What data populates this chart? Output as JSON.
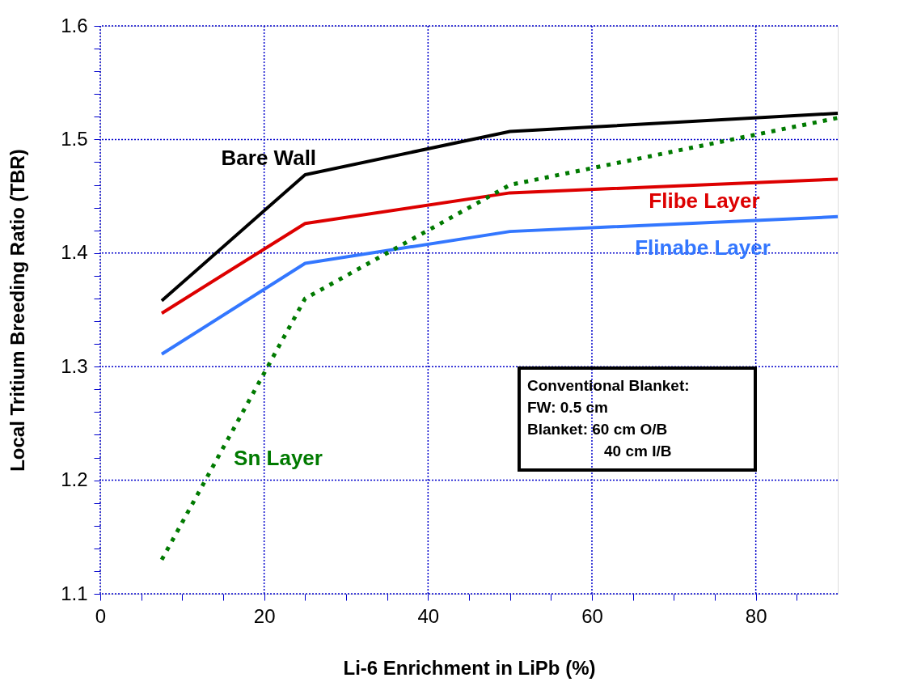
{
  "chart_data": {
    "type": "line",
    "xlabel": "Li-6 Enrichment in LiPb (%)",
    "ylabel": "Local Tritium Breeding Ratio (TBR)",
    "x": [
      7.5,
      25,
      50,
      90
    ],
    "series": [
      {
        "name": "Bare Wall",
        "color": "#000000",
        "values": [
          1.358,
          1.469,
          1.507,
          1.523
        ]
      },
      {
        "name": "Flibe Layer",
        "color": "#dd0000",
        "values": [
          1.347,
          1.426,
          1.453,
          1.465
        ]
      },
      {
        "name": "Flinabe Layer",
        "color": "#3377ff",
        "values": [
          1.311,
          1.391,
          1.419,
          1.432
        ]
      },
      {
        "name": "Sn Layer",
        "color": "#007a00",
        "values": [
          1.13,
          1.36,
          1.46,
          1.519
        ],
        "line_style": "dotted"
      }
    ],
    "xlim": [
      0,
      90
    ],
    "xticks": [
      0,
      {
        "value": 5,
        "label": null
      },
      {
        "value": 10,
        "label": null
      },
      {
        "value": 15,
        "label": null
      },
      20,
      {
        "value": 25,
        "label": null
      },
      {
        "value": 30,
        "label": null
      },
      {
        "value": 35,
        "label": null
      },
      40,
      {
        "value": 45,
        "label": null
      },
      {
        "value": 50,
        "label": null
      },
      {
        "value": 55,
        "label": null
      },
      60,
      {
        "value": 65,
        "label": null
      },
      {
        "value": 70,
        "label": null
      },
      {
        "value": 75,
        "label": null
      },
      80,
      {
        "value": 85,
        "label": null
      }
    ],
    "ylim": [
      1.1,
      1.6
    ],
    "yticks": [
      1.1,
      {
        "value": 1.12,
        "label": null
      },
      {
        "value": 1.14,
        "label": null
      },
      {
        "value": 1.16,
        "label": null
      },
      {
        "value": 1.18,
        "label": null
      },
      1.2,
      {
        "value": 1.22,
        "label": null
      },
      {
        "value": 1.24,
        "label": null
      },
      {
        "value": 1.26,
        "label": null
      },
      {
        "value": 1.28,
        "label": null
      },
      1.3,
      {
        "value": 1.32,
        "label": null
      },
      {
        "value": 1.34,
        "label": null
      },
      {
        "value": 1.36,
        "label": null
      },
      {
        "value": 1.38,
        "label": null
      },
      1.4,
      {
        "value": 1.42,
        "label": null
      },
      {
        "value": 1.44,
        "label": null
      },
      {
        "value": 1.46,
        "label": null
      },
      {
        "value": 1.48,
        "label": null
      },
      1.5,
      {
        "value": 1.52,
        "label": null
      },
      {
        "value": 1.54,
        "label": null
      },
      {
        "value": 1.56,
        "label": null
      },
      {
        "value": 1.58,
        "label": null
      },
      1.6
    ],
    "grid": true,
    "legend": false,
    "marker": "none",
    "annotations": [
      "Conventional Blanket:",
      "FW: 0.5 cm",
      "Blanket: 60 cm O/B",
      "40 cm I/B"
    ]
  }
}
